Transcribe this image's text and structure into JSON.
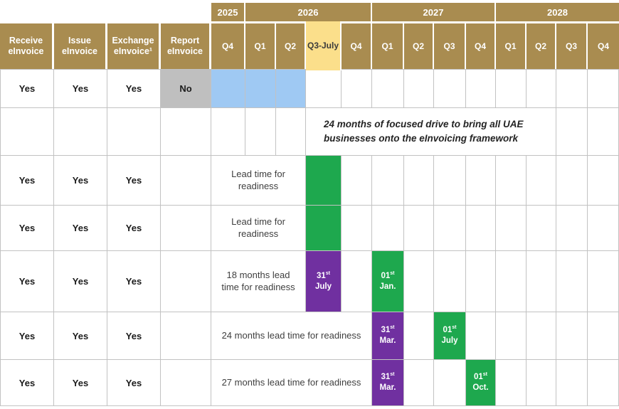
{
  "palette": {
    "gold": "#A98C50",
    "yellow": "#FBDF8B",
    "yellowText": "#3B3B3B",
    "blue": "#9FC9F3",
    "green": "#1EA84E",
    "purple": "#7030A0",
    "grayNo": "#BFBFBF",
    "grid": "#C2C2C2",
    "textDark": "#1C1C1C",
    "textBody": "#3F3F3F",
    "noteText": "#242424"
  },
  "header": {
    "years": [
      "2025",
      "2026",
      "2027",
      "2028"
    ],
    "capabilities": [
      "Receive\neInvoice",
      "Issue\neInvoice",
      "Exchange\neInvoice¹",
      "Report\neInvoice"
    ],
    "quarters": [
      "Q4",
      "Q1",
      "Q2",
      "Q3-July",
      "Q4",
      "Q1",
      "Q2",
      "Q3",
      "Q4",
      "Q1",
      "Q2",
      "Q3",
      "Q4"
    ]
  },
  "rows": {
    "r1": {
      "receive": "Yes",
      "issue": "Yes",
      "exchange": "Yes",
      "report": "No"
    },
    "r2": {
      "note": "24 months of focused drive to bring all UAE\nbusinesses onto the eInvoicing framework"
    },
    "r3": {
      "receive": "Yes",
      "issue": "Yes",
      "exchange": "Yes",
      "lead": "Lead time for\nreadiness"
    },
    "r4": {
      "receive": "Yes",
      "issue": "Yes",
      "exchange": "Yes",
      "lead": "Lead time for\nreadiness"
    },
    "r5": {
      "receive": "Yes",
      "issue": "Yes",
      "exchange": "Yes",
      "lead": "18 months lead\ntime for readiness",
      "deadline": {
        "day": "31",
        "sup": "st",
        "month": "July"
      },
      "golive": {
        "day": "01",
        "sup": "st",
        "month": "Jan."
      }
    },
    "r6": {
      "receive": "Yes",
      "issue": "Yes",
      "exchange": "Yes",
      "lead": "24 months lead time for readiness",
      "deadline": {
        "day": "31",
        "sup": "st",
        "month": "Mar."
      },
      "golive": {
        "day": "01",
        "sup": "st",
        "month": "July"
      }
    },
    "r7": {
      "receive": "Yes",
      "issue": "Yes",
      "exchange": "Yes",
      "lead": "27 months lead time for readiness",
      "deadline": {
        "day": "31",
        "sup": "st",
        "month": "Mar."
      },
      "golive": {
        "day": "01",
        "sup": "st",
        "month": "Oct."
      }
    }
  },
  "chart_data": {
    "type": "table",
    "columns": [
      "Receive eInvoice",
      "Issue eInvoice",
      "Exchange eInvoice¹",
      "Report eInvoice",
      "2025 Q4",
      "2026 Q1",
      "2026 Q2",
      "2026 Q3-July",
      "2026 Q4",
      "2027 Q1",
      "2027 Q2",
      "2027 Q3",
      "2027 Q4",
      "2028 Q1",
      "2028 Q2",
      "2028 Q3",
      "2028 Q4"
    ],
    "highlighted_header_quarter": "2026 Q3-July",
    "annotation": "24 months of focused drive to bring all UAE businesses onto the eInvoicing framework",
    "annotation_span": [
      "2026 Q3-July",
      "2028 Q2"
    ],
    "rows": [
      {
        "receive": "Yes",
        "issue": "Yes",
        "exchange": "Yes",
        "report": "No",
        "bars": [
          {
            "color": "blue",
            "from": "2025 Q4",
            "to": "2026 Q2",
            "text": ""
          }
        ]
      },
      {
        "receive": "Yes",
        "issue": "Yes",
        "exchange": "Yes",
        "report": "",
        "label": "Lead time for readiness",
        "bars": [
          {
            "color": "green",
            "at": "2026 Q3-July",
            "text": ""
          }
        ]
      },
      {
        "receive": "Yes",
        "issue": "Yes",
        "exchange": "Yes",
        "report": "",
        "label": "Lead time for readiness",
        "bars": [
          {
            "color": "green",
            "at": "2026 Q3-July",
            "text": ""
          }
        ]
      },
      {
        "receive": "Yes",
        "issue": "Yes",
        "exchange": "Yes",
        "report": "",
        "label": "18 months lead time for readiness",
        "bars": [
          {
            "color": "purple",
            "at": "2026 Q3-July",
            "text": "31st July"
          },
          {
            "color": "green",
            "at": "2027 Q1",
            "text": "01st Jan."
          }
        ]
      },
      {
        "receive": "Yes",
        "issue": "Yes",
        "exchange": "Yes",
        "report": "",
        "label": "24 months lead time for readiness",
        "bars": [
          {
            "color": "purple",
            "at": "2027 Q1",
            "text": "31st Mar."
          },
          {
            "color": "green",
            "at": "2027 Q3",
            "text": "01st July"
          }
        ]
      },
      {
        "receive": "Yes",
        "issue": "Yes",
        "exchange": "Yes",
        "report": "",
        "label": "27 months lead time for readiness",
        "bars": [
          {
            "color": "purple",
            "at": "2027 Q1",
            "text": "31st Mar."
          },
          {
            "color": "green",
            "at": "2027 Q4",
            "text": "01st Oct."
          }
        ]
      }
    ]
  }
}
